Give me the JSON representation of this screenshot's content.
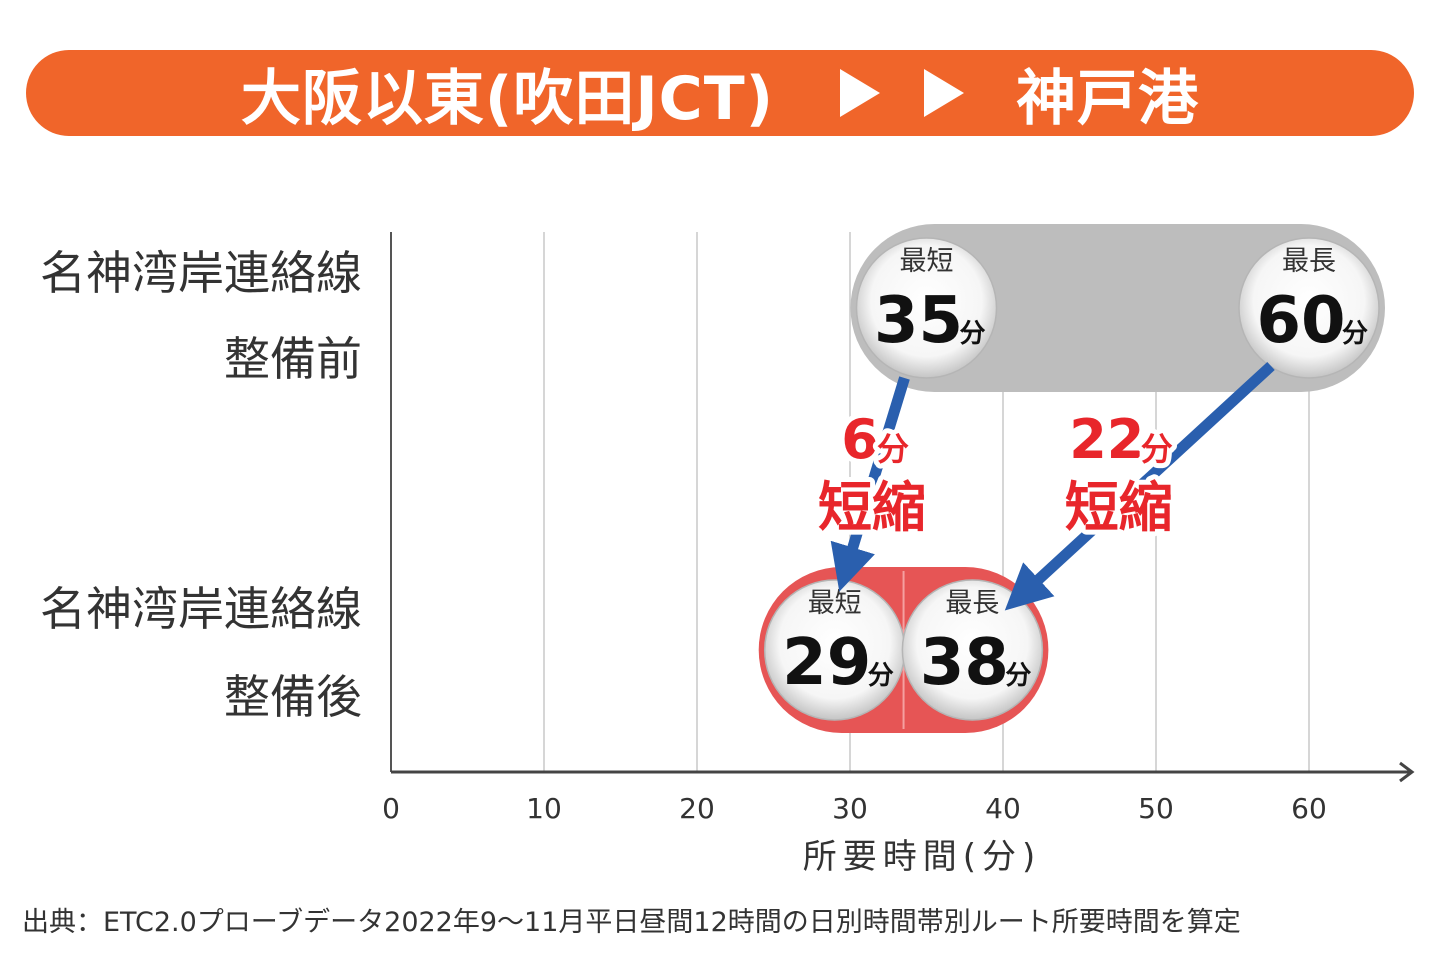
{
  "banner": {
    "origin": "大阪以東(吹田JCT)",
    "destination": "神戸港",
    "color": "#f0652a"
  },
  "rows": [
    {
      "line1": "名神湾岸連絡線",
      "line2": "整備前"
    },
    {
      "line1": "名神湾岸連絡線",
      "line2": "整備後"
    }
  ],
  "chart_data": {
    "type": "range",
    "xlabel": "所要時間(分)",
    "x_ticks": [
      0,
      10,
      20,
      30,
      40,
      50,
      60
    ],
    "xlim": [
      0,
      66
    ],
    "grid": true,
    "series": [
      {
        "name": "名神湾岸連絡線 整備前",
        "min": 35,
        "max": 60,
        "min_label": "最短",
        "max_label": "最長",
        "min_text": "35",
        "max_text": "60",
        "unit": "分",
        "color": "#bdbdbd"
      },
      {
        "name": "名神湾岸連絡線 整備後",
        "min": 29,
        "max": 38,
        "min_label": "最短",
        "max_label": "最長",
        "min_text": "29",
        "max_text": "38",
        "unit": "分",
        "color": "#e65555"
      }
    ],
    "annotations": [
      {
        "value": "6",
        "unit": "分",
        "text": "短縮",
        "from": 35,
        "to": 29
      },
      {
        "value": "22",
        "unit": "分",
        "text": "短縮",
        "from": 60,
        "to": 38
      }
    ],
    "colors": {
      "arrow": "#2a5fae",
      "reduction_text": "#e8262b"
    }
  },
  "source": "出典：ETC2.0プローブデータ2022年9〜11月平日昼間12時間の日別時間帯別ルート所要時間を算定"
}
